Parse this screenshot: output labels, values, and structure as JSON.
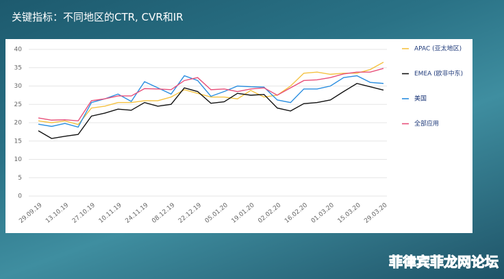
{
  "title": "关键指标：不同地区的CTR, CVR和IR",
  "watermark": "菲律宾菲龙网论坛",
  "chart_data": {
    "type": "line",
    "categories": [
      "29.09.19",
      null,
      "13.10.19",
      null,
      "27.10.19",
      null,
      "10.11.19",
      null,
      "24.11.19",
      null,
      "08.12.19",
      null,
      "22.12.19",
      null,
      "05.01.20",
      null,
      "19.01.20",
      null,
      "02.02.20",
      null,
      "16.02.20",
      null,
      "01.03.20",
      null,
      "15.03.20",
      null,
      "29.03.20"
    ],
    "series": [
      {
        "name": "APAC (亚太地区)",
        "color": "#f5c242",
        "values": [
          20.5,
          20,
          20.5,
          19.5,
          24,
          24.5,
          25.5,
          25.5,
          26,
          26,
          27,
          29,
          28,
          27,
          27,
          26.5,
          28.8,
          27,
          27.5,
          30,
          33.5,
          33.8,
          33.2,
          33.5,
          33.5,
          34.5,
          36.5
        ]
      },
      {
        "name": "EMEA (欧非中东)",
        "color": "#111111",
        "values": [
          17.8,
          15.7,
          16.3,
          16.8,
          21.8,
          22.6,
          23.7,
          23.4,
          25.5,
          24.5,
          25,
          29.5,
          28.5,
          25.3,
          25.7,
          28,
          27.5,
          27.7,
          24,
          23.2,
          25.2,
          25.5,
          26.2,
          28.5,
          30.7,
          29.8,
          28.9
        ]
      },
      {
        "name": "美国",
        "color": "#2a8ee0",
        "values": [
          19.6,
          19,
          19.8,
          18.8,
          25.5,
          26.5,
          27.8,
          25.8,
          31.2,
          29.5,
          27.8,
          32.8,
          31.5,
          27.2,
          28.5,
          30,
          29.8,
          29.7,
          26.2,
          25.5,
          29.2,
          29.2,
          30,
          32.3,
          32.8,
          31,
          30.7
        ]
      },
      {
        "name": "全部应用",
        "color": "#e8507a",
        "values": [
          21.3,
          20.7,
          20.8,
          20.5,
          26,
          26.5,
          27.3,
          27.3,
          29.3,
          29.2,
          29,
          31.5,
          32.3,
          29,
          29.2,
          28.5,
          29.2,
          29.5,
          27.5,
          29.5,
          31.5,
          31.7,
          32.3,
          33.3,
          33.8,
          33.8,
          34.8
        ]
      }
    ],
    "ylim": [
      0,
      40
    ],
    "yticks": [
      0,
      5,
      10,
      15,
      20,
      25,
      30,
      35,
      40
    ],
    "grid": true,
    "legend": "right"
  }
}
